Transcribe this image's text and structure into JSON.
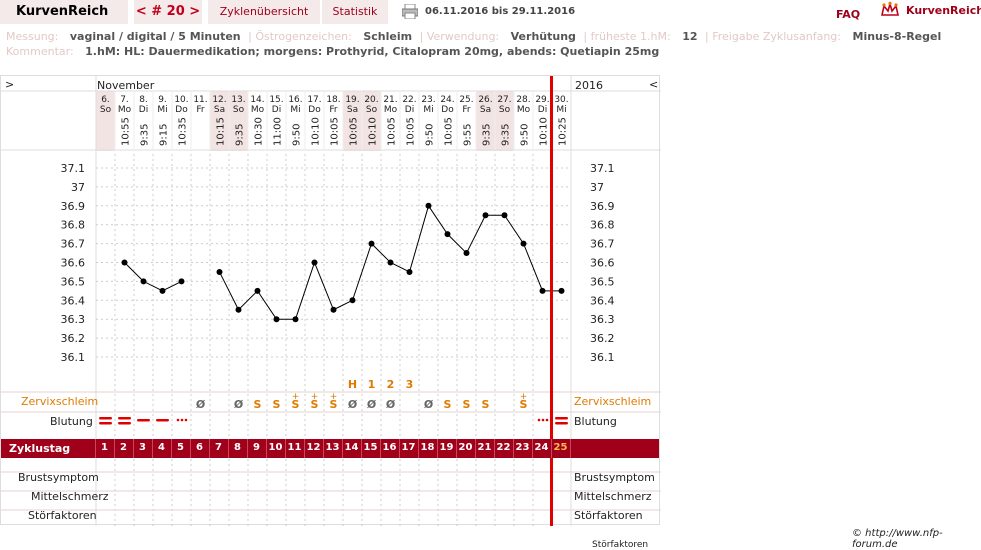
{
  "header": {
    "brand": "KurvenReich",
    "cycle_nav": "< # 20 >",
    "tab_cycle_overview": "Zyklenübersicht",
    "tab_statistics": "Statistik",
    "date_range": "06.11.2016 bis 29.11.2016",
    "faq": "FAQ",
    "logo_text": "KurvenReich",
    "print_icon": "print-icon",
    "logo_icon": "crown-icon"
  },
  "info": {
    "measurement_label": "Messung:",
    "measurement_value": "vaginal / digital / 5 Minuten",
    "estrogen_label": "Östrogenzeichen:",
    "estrogen_value": "Schleim",
    "use_label": "Verwendung:",
    "use_value": "Verhütung",
    "earliest_label": "früheste 1.hM:",
    "earliest_value": "12",
    "release_label": "Freigabe Zyklusanfang:",
    "release_value": "Minus-8-Regel",
    "comment_label": "Kommentar:",
    "comment_value": "1.hM: HL: Dauermedikation; morgens: Prothyrid, Citalopram 20mg, abends: Quetiapin 25mg"
  },
  "chart_top": {
    "left_arrow": ">",
    "month": "November",
    "year": "2016",
    "right_arrow": "<"
  },
  "row_labels": {
    "cervix": "Zervixschleim",
    "bleeding": "Blutung",
    "cycle_day": "Zyklustag",
    "breast": "Brustsymptom",
    "midpain": "Mittelschmerz",
    "disturb": "Störfaktoren",
    "cervix_r": "Zervixschleim",
    "bleeding_r": "Blutung",
    "breast_r": "Brustsymptom",
    "midpain_r": "Mittelschmerz",
    "disturb_r": "Störfaktoren"
  },
  "peak_markers": [
    "H",
    "1",
    "2",
    "3"
  ],
  "footer": {
    "copyright": "© http://www.nfp-forum.de",
    "cut_text": "Störfaktoren"
  },
  "colors": {
    "accent": "#a0001a",
    "marker_line": "#e00000",
    "orange": "#e07a00",
    "weekend_bg": "#f3e4e4"
  },
  "chart_data": {
    "type": "line",
    "ylim": [
      36.0,
      37.2
    ],
    "yticks": [
      37.1,
      37.0,
      36.9,
      36.8,
      36.7,
      36.6,
      36.5,
      36.4,
      36.3,
      36.2,
      36.1
    ],
    "ytick_labels": [
      "37.1",
      "37",
      "36.9",
      "36.8",
      "36.7",
      "36.6",
      "36.5",
      "36.4",
      "36.3",
      "36.2",
      "36.1"
    ],
    "days": [
      {
        "d": "6.",
        "w": "So",
        "t": "",
        "cd": "1",
        "temp": null,
        "cx": "",
        "bl": "heavy",
        "we": true
      },
      {
        "d": "7.",
        "w": "Mo",
        "t": "10:55",
        "cd": "2",
        "temp": 36.6,
        "cx": "",
        "bl": "heavy",
        "we": false
      },
      {
        "d": "8.",
        "w": "Di",
        "t": "9:35",
        "cd": "3",
        "temp": 36.5,
        "cx": "",
        "bl": "medium",
        "we": false
      },
      {
        "d": "9.",
        "w": "Mi",
        "t": "9:15",
        "cd": "4",
        "temp": 36.45,
        "cx": "",
        "bl": "medium",
        "we": false
      },
      {
        "d": "10.",
        "w": "Do",
        "t": "10:35",
        "cd": "5",
        "temp": 36.5,
        "cx": "",
        "bl": "spot",
        "we": false
      },
      {
        "d": "11.",
        "w": "Fr",
        "t": "",
        "cd": "6",
        "temp": null,
        "cx": "Ø",
        "bl": "",
        "we": false
      },
      {
        "d": "12.",
        "w": "Sa",
        "t": "10:15",
        "cd": "7",
        "temp": 36.55,
        "cx": "",
        "bl": "",
        "we": true
      },
      {
        "d": "13.",
        "w": "So",
        "t": "9:35",
        "cd": "8",
        "temp": 36.35,
        "cx": "Ø",
        "bl": "",
        "we": true
      },
      {
        "d": "14.",
        "w": "Mo",
        "t": "10:30",
        "cd": "9",
        "temp": 36.45,
        "cx": "S",
        "bl": "",
        "we": false
      },
      {
        "d": "15.",
        "w": "Di",
        "t": "11:00",
        "cd": "10",
        "temp": 36.3,
        "cx": "S",
        "bl": "",
        "we": false
      },
      {
        "d": "16.",
        "w": "Mi",
        "t": "9:50",
        "cd": "11",
        "temp": 36.3,
        "cx": "S+",
        "bl": "",
        "we": false
      },
      {
        "d": "17.",
        "w": "Do",
        "t": "10:10",
        "cd": "12",
        "temp": 36.6,
        "cx": "S+",
        "bl": "",
        "we": false
      },
      {
        "d": "18.",
        "w": "Fr",
        "t": "10:05",
        "cd": "13",
        "temp": 36.35,
        "cx": "S+",
        "bl": "",
        "we": false
      },
      {
        "d": "19.",
        "w": "Sa",
        "t": "10:05",
        "cd": "14",
        "temp": 36.4,
        "cx": "Ø",
        "bl": "",
        "we": true
      },
      {
        "d": "20.",
        "w": "So",
        "t": "10:10",
        "cd": "15",
        "temp": 36.7,
        "cx": "Ø",
        "bl": "",
        "we": true
      },
      {
        "d": "21.",
        "w": "Mo",
        "t": "10:05",
        "cd": "16",
        "temp": 36.6,
        "cx": "Ø",
        "bl": "",
        "we": false
      },
      {
        "d": "22.",
        "w": "Di",
        "t": "10:05",
        "cd": "17",
        "temp": 36.55,
        "cx": "",
        "bl": "",
        "we": false
      },
      {
        "d": "23.",
        "w": "Mi",
        "t": "9:50",
        "cd": "18",
        "temp": 36.9,
        "cx": "Ø",
        "bl": "",
        "we": false
      },
      {
        "d": "24.",
        "w": "Do",
        "t": "10:05",
        "cd": "19",
        "temp": 36.75,
        "cx": "S",
        "bl": "",
        "we": false
      },
      {
        "d": "25.",
        "w": "Fr",
        "t": "9:55",
        "cd": "20",
        "temp": 36.65,
        "cx": "S",
        "bl": "",
        "we": false
      },
      {
        "d": "26.",
        "w": "Sa",
        "t": "9:35",
        "cd": "21",
        "temp": 36.85,
        "cx": "S",
        "bl": "",
        "we": true
      },
      {
        "d": "27.",
        "w": "So",
        "t": "9:35",
        "cd": "22",
        "temp": 36.85,
        "cx": "",
        "bl": "",
        "we": true
      },
      {
        "d": "28.",
        "w": "Mo",
        "t": "9:50",
        "cd": "23",
        "temp": 36.7,
        "cx": "S+",
        "bl": "",
        "we": false
      },
      {
        "d": "29.",
        "w": "Di",
        "t": "10:10",
        "cd": "24",
        "temp": 36.45,
        "cx": "",
        "bl": "spot",
        "we": false
      },
      {
        "d": "30.",
        "w": "Mi",
        "t": "10:25",
        "cd": "25",
        "temp": 36.45,
        "cx": "",
        "bl": "heavy",
        "we": false
      }
    ],
    "peak_positions": [
      13,
      14,
      15,
      16
    ]
  }
}
